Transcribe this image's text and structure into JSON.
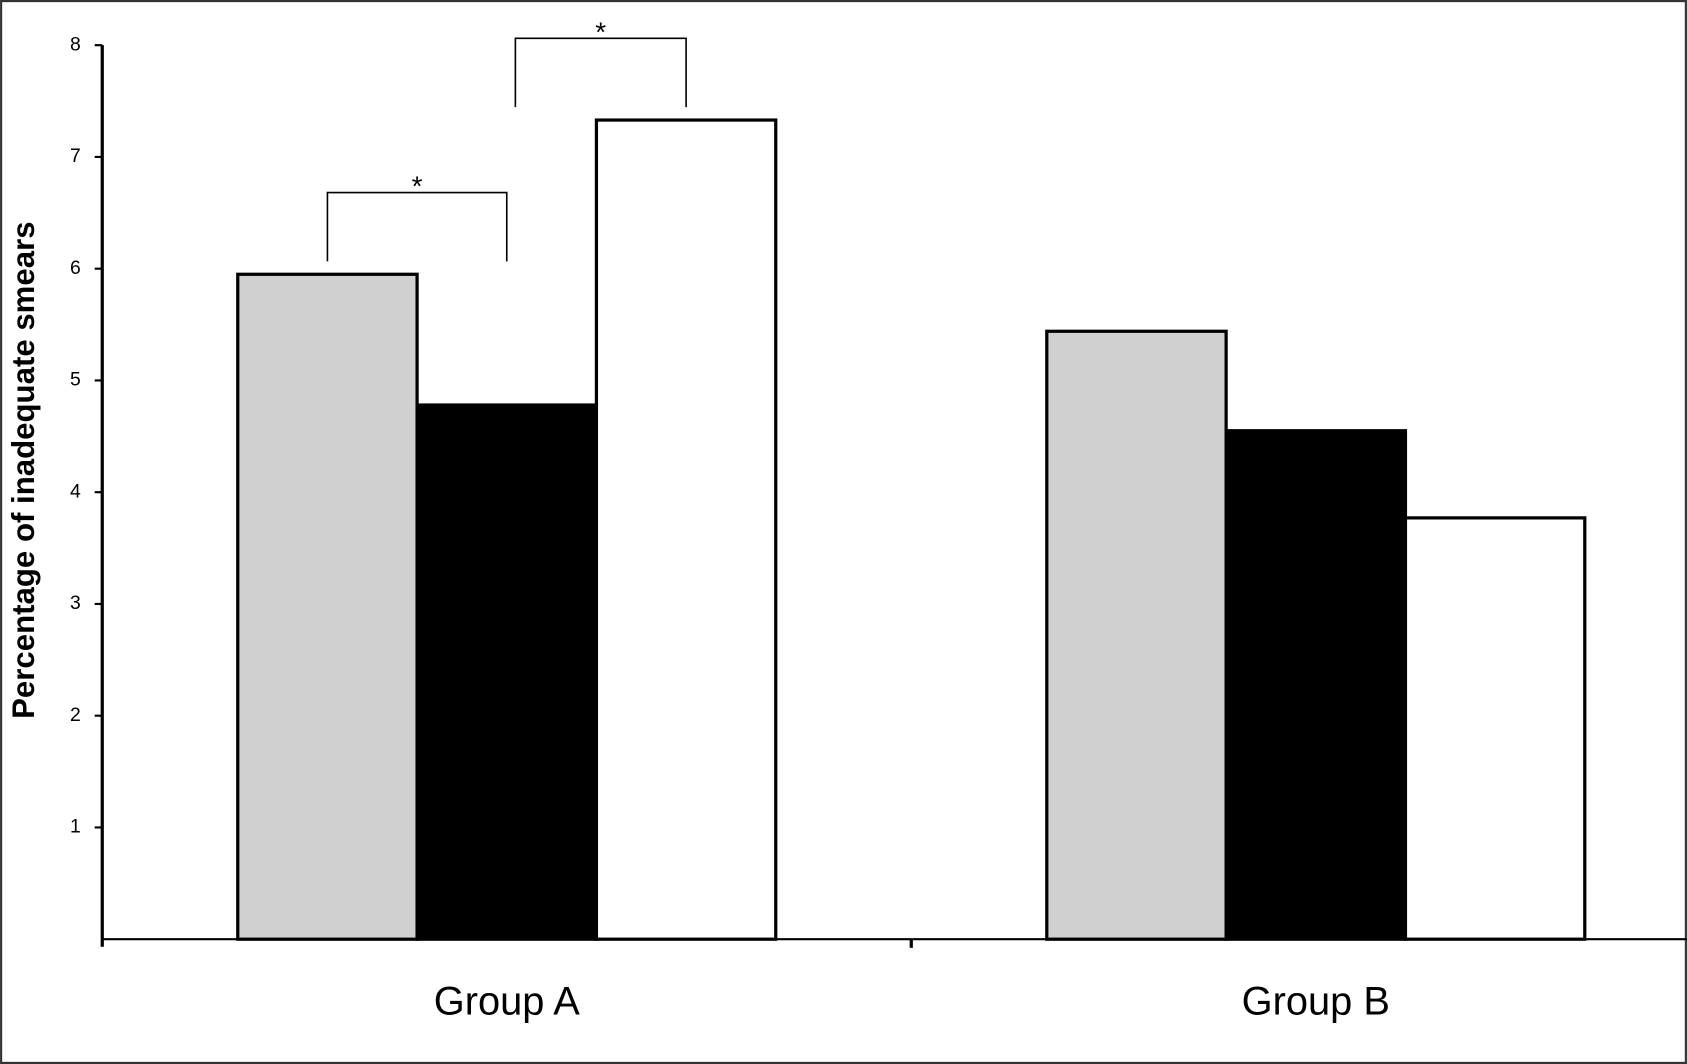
{
  "chart_data": {
    "type": "bar",
    "y_label": "Percentage of inadequate smears",
    "categories": [
      "Group A",
      "Group B"
    ],
    "series": [
      {
        "color": "#d0d0d0",
        "values": [
          5.95,
          5.44
        ]
      },
      {
        "color": "#000000",
        "values": [
          4.78,
          4.55
        ]
      },
      {
        "color": "#ffffff",
        "values": [
          7.33,
          3.77
        ]
      }
    ],
    "ylim": [
      0,
      8
    ],
    "yticks": [
      1,
      2,
      3,
      4,
      5,
      6,
      7,
      8
    ],
    "annotations": [
      "*",
      "*"
    ]
  }
}
